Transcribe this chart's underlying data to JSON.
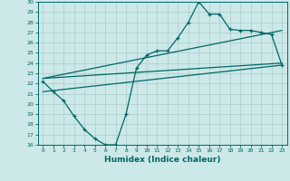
{
  "xlabel": "Humidex (Indice chaleur)",
  "ylabel": "",
  "bg_color": "#cce8e8",
  "grid_color": "#aacccc",
  "line_color": "#006666",
  "xlim": [
    -0.5,
    23.5
  ],
  "ylim": [
    16,
    30
  ],
  "xticks": [
    0,
    1,
    2,
    3,
    4,
    5,
    6,
    7,
    8,
    9,
    10,
    11,
    12,
    13,
    14,
    15,
    16,
    17,
    18,
    19,
    20,
    21,
    22,
    23
  ],
  "yticks": [
    16,
    17,
    18,
    19,
    20,
    21,
    22,
    23,
    24,
    25,
    26,
    27,
    28,
    29,
    30
  ],
  "zigzag_x": [
    0,
    1,
    2,
    3,
    4,
    5,
    6,
    7,
    8,
    9,
    10,
    11,
    12,
    13,
    14,
    15,
    16,
    17,
    18,
    19,
    20,
    21,
    22,
    23
  ],
  "zigzag_y": [
    22.2,
    21.2,
    20.3,
    18.8,
    17.5,
    16.6,
    16.0,
    16.0,
    19.0,
    23.5,
    24.8,
    25.2,
    25.2,
    26.5,
    28.0,
    30.0,
    28.8,
    28.8,
    27.3,
    27.2,
    27.2,
    27.0,
    26.8,
    23.8
  ],
  "line1_x": [
    0,
    23
  ],
  "line1_y": [
    22.5,
    24.0
  ],
  "line2_x": [
    0,
    23
  ],
  "line2_y": [
    22.5,
    27.2
  ],
  "line3_x": [
    0,
    23
  ],
  "line3_y": [
    21.2,
    23.8
  ]
}
